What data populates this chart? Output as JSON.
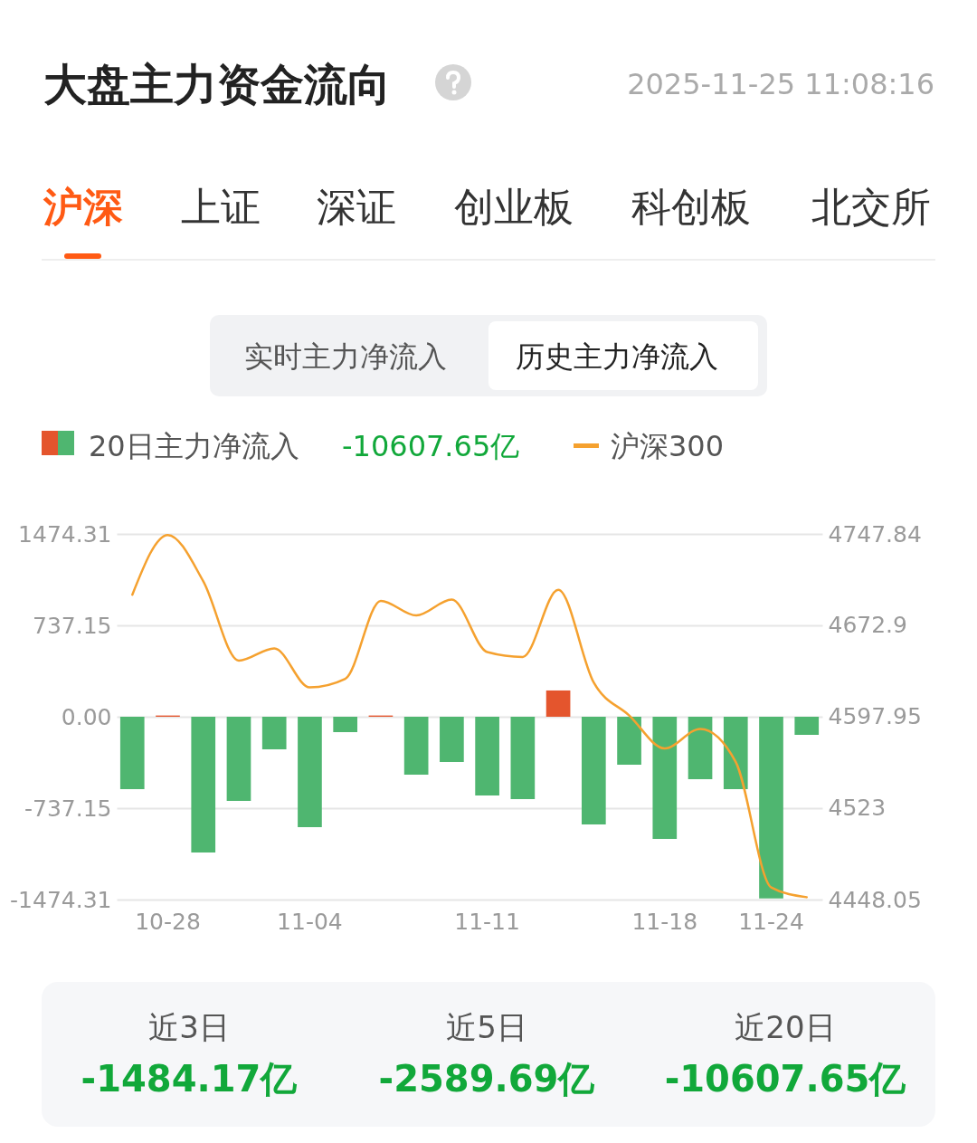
{
  "chart_data": {
    "type": "bar",
    "title": "大盘主力资金流向",
    "annotations": [
      "2025-11-25 11:08:16",
      "沪深",
      "上证",
      "深证",
      "创业板",
      "科创板",
      "北交所",
      "实时主力净流入",
      "历史主力净流入",
      "-10607.65亿",
      "近3日",
      "-1484.17亿",
      "近5日",
      "-2589.69亿",
      "近20日",
      "-10607.65亿"
    ],
    "categories": [
      null,
      "10-28",
      null,
      null,
      null,
      "11-04",
      null,
      null,
      null,
      null,
      "11-11",
      null,
      null,
      null,
      null,
      "11-18",
      null,
      null,
      "11-24",
      null
    ],
    "series": [
      {
        "name": "20日主力净流入",
        "colors": [
          "#4fb670",
          "#e4552d",
          "#4fb670",
          "#4fb670",
          "#4fb670",
          "#4fb670",
          "#4fb670",
          "#e4552d",
          "#4fb670",
          "#4fb670",
          "#4fb670",
          "#4fb670",
          "#e4552d",
          "#4fb670",
          "#4fb670",
          "#4fb670",
          "#4fb670",
          "#4fb670",
          "#4fb670",
          "#4fb670"
        ],
        "values": [
          -584,
          10,
          -1095,
          -679,
          -263,
          -891,
          -124,
          10,
          -467,
          -365,
          -635,
          -664,
          212,
          -869,
          -387,
          -986,
          -504,
          -584,
          -1465,
          -146
        ]
      },
      {
        "name": "沪深300",
        "type": "line",
        "axis": "y2",
        "color": "#f5a12f",
        "values": [
          4698,
          4747,
          4709,
          4644,
          4654,
          4622,
          4629,
          4693,
          4681,
          4694,
          4651,
          4647,
          4702,
          4626,
          4599,
          4572,
          4588,
          4561,
          4458,
          4450
        ]
      }
    ],
    "ylim": [
      -1474.31,
      1474.31
    ],
    "yticks": [
      {
        "value": 1474.31,
        "label": "1474.31"
      },
      {
        "value": 737.155,
        "label": "737.15"
      },
      {
        "value": 0,
        "label": "0.00"
      },
      {
        "value": -737.155,
        "label": "-737.15"
      },
      {
        "value": -1474.31,
        "label": "-1474.31"
      }
    ],
    "y2lim": [
      4448.05,
      4747.84
    ],
    "y2ticks": [
      4747.84,
      4672.9,
      4597.95,
      4523,
      4448.05
    ],
    "grid": "y",
    "legend": "top left"
  }
}
